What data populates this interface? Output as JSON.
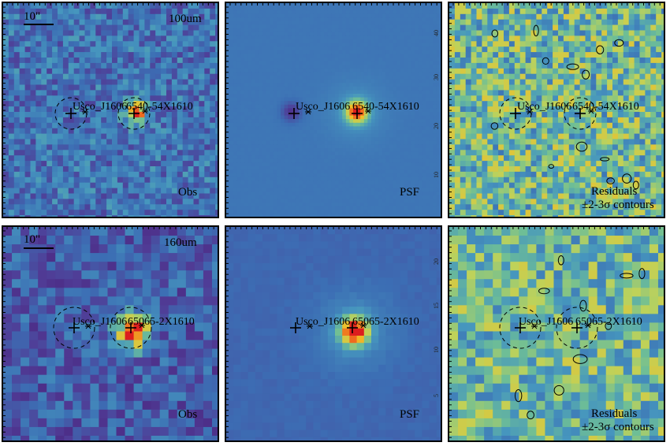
{
  "panels": [
    {
      "band_label": "100um",
      "type_label": "Obs",
      "scalebar_label": "10\"",
      "source_names": [
        "Usco_J1606",
        "6540-54X1610"
      ]
    },
    {
      "type_label": "PSF",
      "source_names": [
        "Usco_J1606",
        "6540-54X1610"
      ],
      "yticks": [
        "40",
        "30",
        "20",
        "10"
      ]
    },
    {
      "type_label": "Residuals",
      "contour_label": "±2-3σ contours",
      "source_names": [
        "Usco_J1606",
        "6540-54X1610"
      ]
    },
    {
      "band_label": "160um",
      "type_label": "Obs",
      "scalebar_label": "10\"",
      "source_names": [
        "Usco_J1606",
        "65065-2X1610"
      ]
    },
    {
      "type_label": "PSF",
      "source_names": [
        "Usco_J1606",
        "65065-2X1610"
      ],
      "yticks": [
        "20",
        "15",
        "10",
        "5"
      ]
    },
    {
      "type_label": "Residuals",
      "contour_label": "±2-3σ contours",
      "source_names": [
        "Usco_J1606",
        "65065-2X1610"
      ]
    }
  ],
  "colors": {
    "background_obs": "#4a7fb0",
    "psf_bg": "#4a86c4",
    "peak": "#e8332b",
    "residual_mix": "#9fbf6a",
    "border": "#000000"
  }
}
